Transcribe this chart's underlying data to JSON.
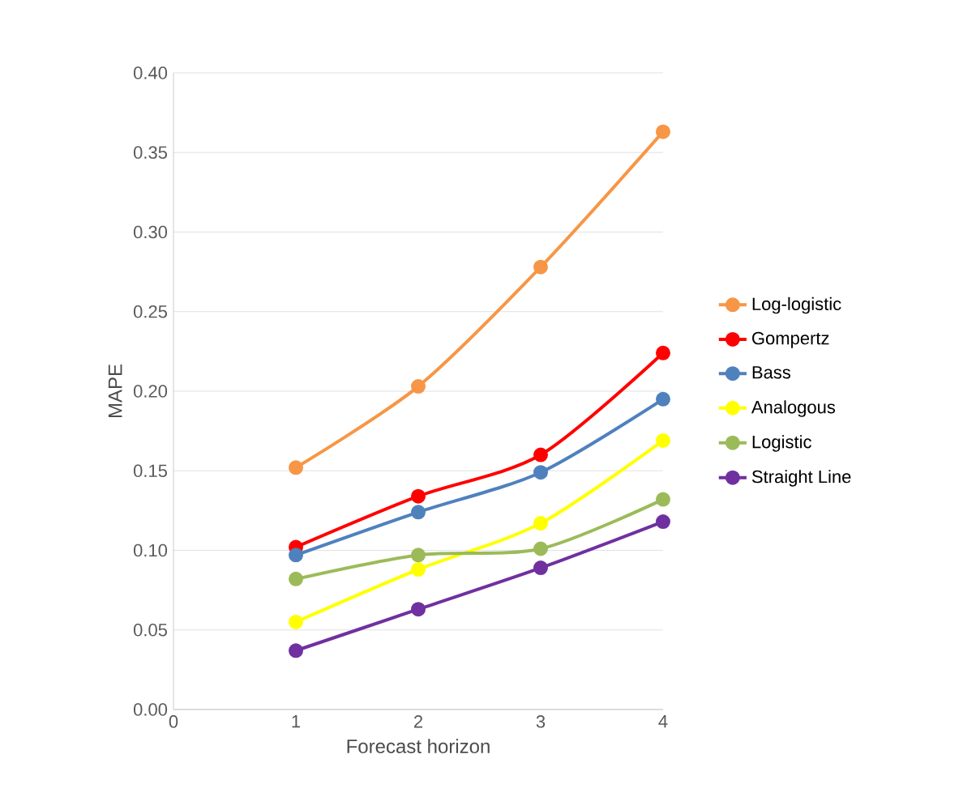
{
  "chart_data": {
    "type": "line",
    "xlabel": "Forecast horizon",
    "ylabel": "MAPE",
    "x": [
      1,
      2,
      3,
      4
    ],
    "xlim": [
      0,
      4
    ],
    "xticks": [
      0,
      1,
      2,
      3,
      4
    ],
    "ylim": [
      0,
      0.4
    ],
    "yticks": [
      {
        "value": 0,
        "label": "0.00"
      },
      0.05,
      {
        "value": 0.1,
        "label": "0.10"
      },
      0.15,
      {
        "value": 0.2,
        "label": "0.20"
      },
      0.25,
      {
        "value": 0.3,
        "label": "0.30"
      },
      0.35,
      {
        "value": 0.4,
        "label": "0.40"
      }
    ],
    "grid": "y",
    "legend": "right",
    "marker": "circle",
    "series": [
      {
        "name": "Log-logistic",
        "color": "#f79646",
        "values": [
          0.152,
          0.203,
          0.278,
          0.363
        ]
      },
      {
        "name": "Gompertz",
        "color": "#ff0000",
        "values": [
          0.102,
          0.134,
          0.16,
          0.224
        ]
      },
      {
        "name": "Bass",
        "color": "#4f81bd",
        "values": [
          0.097,
          0.124,
          0.149,
          0.195
        ]
      },
      {
        "name": "Analogous",
        "color": "#ffff00",
        "values": [
          0.055,
          0.088,
          0.117,
          0.169
        ]
      },
      {
        "name": "Logistic",
        "color": "#9bbb59",
        "values": [
          0.082,
          0.097,
          0.101,
          0.132
        ]
      },
      {
        "name": "Straight Line",
        "color": "#7030a0",
        "values": [
          0.037,
          0.063,
          0.089,
          0.118
        ]
      }
    ]
  }
}
